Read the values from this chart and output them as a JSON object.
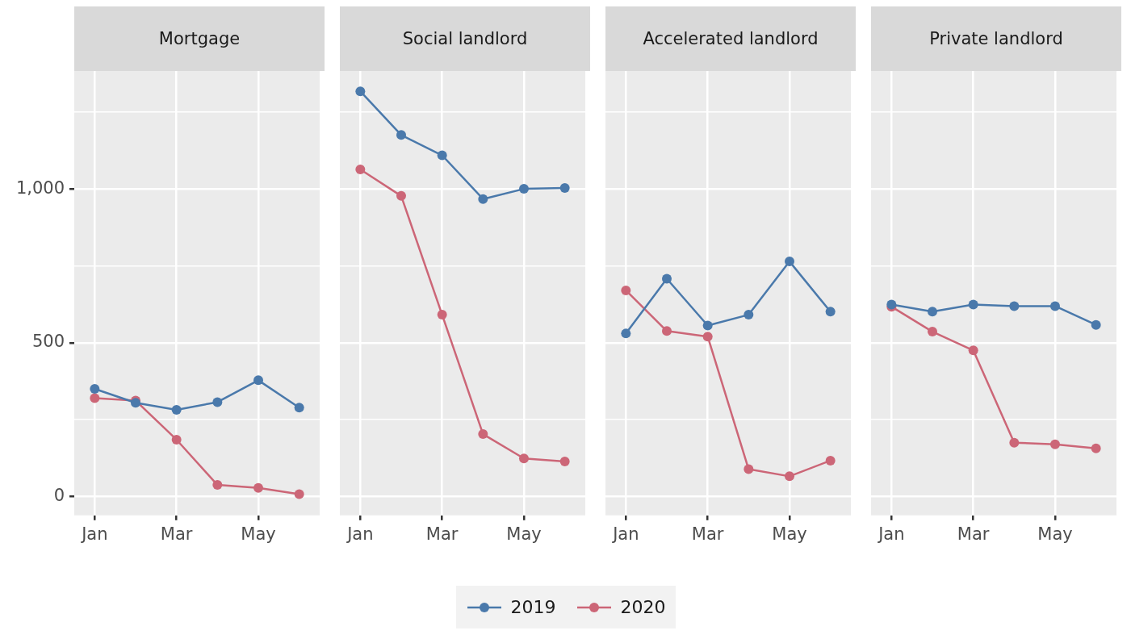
{
  "chart_data": [
    {
      "type": "line",
      "title": "Mortgage",
      "categories": [
        "Jan",
        null,
        "Mar",
        null,
        "May",
        null
      ],
      "marker": "circle",
      "grid": true,
      "legend": "bottom",
      "ylim": [
        -61,
        1383
      ],
      "yticks": [
        0,
        {
          "value": 250,
          "label": null
        },
        500,
        {
          "value": 750,
          "label": null
        },
        {
          "value": 1000,
          "label": "1,000"
        },
        {
          "value": 1250,
          "label": null
        }
      ],
      "series": [
        {
          "name": "2019",
          "color": "#4a79ab",
          "values": [
            350,
            305,
            282,
            307,
            378,
            289
          ]
        },
        {
          "name": "2020",
          "color": "#cc6677",
          "values": [
            320,
            312,
            185,
            38,
            28,
            8
          ]
        }
      ]
    },
    {
      "type": "line",
      "title": "Social landlord",
      "categories": [
        "Jan",
        null,
        "Mar",
        null,
        "May",
        null
      ],
      "marker": "circle",
      "grid": true,
      "tick_labels": "x",
      "ylim": [
        -61,
        1383
      ],
      "yticks": [
        0,
        {
          "value": 250,
          "label": null
        },
        500,
        {
          "value": 750,
          "label": null
        },
        1000,
        {
          "value": 1250,
          "label": null
        }
      ],
      "series": [
        {
          "name": "2019",
          "color": "#4a79ab",
          "values": [
            1317,
            1175,
            1109,
            967,
            1000,
            1003
          ]
        },
        {
          "name": "2020",
          "color": "#cc6677",
          "values": [
            1063,
            977,
            591,
            203,
            124,
            114
          ]
        }
      ]
    },
    {
      "type": "line",
      "title": "Accelerated landlord",
      "categories": [
        "Jan",
        null,
        "Mar",
        null,
        "May",
        null
      ],
      "marker": "circle",
      "grid": true,
      "tick_labels": "x",
      "ylim": [
        -61,
        1383
      ],
      "yticks": [
        0,
        {
          "value": 250,
          "label": null
        },
        500,
        {
          "value": 750,
          "label": null
        },
        1000,
        {
          "value": 1250,
          "label": null
        }
      ],
      "series": [
        {
          "name": "2019",
          "color": "#4a79ab",
          "values": [
            530,
            708,
            556,
            591,
            764,
            601
          ]
        },
        {
          "name": "2020",
          "color": "#cc6677",
          "values": [
            670,
            538,
            520,
            89,
            66,
            117
          ]
        }
      ]
    },
    {
      "type": "line",
      "title": "Private landlord",
      "categories": [
        "Jan",
        null,
        "Mar",
        null,
        "May",
        null
      ],
      "marker": "circle",
      "grid": true,
      "tick_labels": "x",
      "ylim": [
        -61,
        1383
      ],
      "yticks": [
        0,
        {
          "value": 250,
          "label": null
        },
        500,
        {
          "value": 750,
          "label": null
        },
        1000,
        {
          "value": 1250,
          "label": null
        }
      ],
      "series": [
        {
          "name": "2019",
          "color": "#4a79ab",
          "values": [
            624,
            601,
            624,
            619,
            619,
            558
          ]
        },
        {
          "name": "2020",
          "color": "#cc6677",
          "values": [
            617,
            536,
            475,
            175,
            170,
            157
          ]
        }
      ]
    }
  ]
}
